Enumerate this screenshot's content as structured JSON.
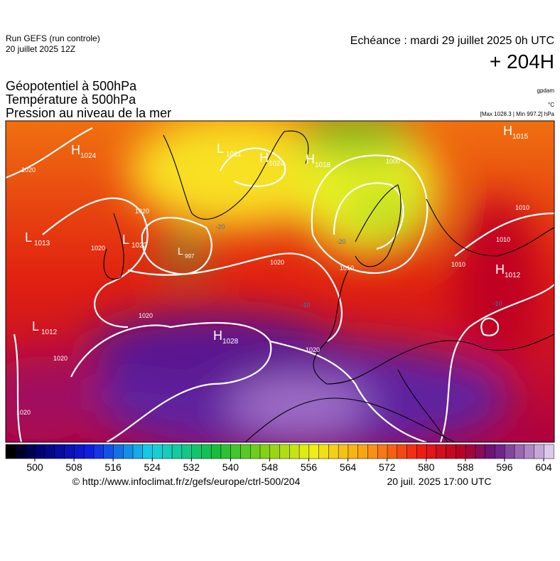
{
  "header": {
    "run": "Run GEFS (run controle)",
    "run_date": "20 juillet 2025 12Z",
    "valid": "Echéance : mardi 29 juillet 2025 0h UTC",
    "lead": "+ 204H",
    "field1": "Géopotentiel à 500hPa",
    "field2": "Température à 500hPa",
    "field3": "Pression au niveau de la mer",
    "unit1": "gpdam",
    "unit2": "°C",
    "unit3": "[Max 1028.3 | Min 997.2] hPa"
  },
  "pressure_centers": [
    {
      "letter": "H",
      "value": 1024
    },
    {
      "letter": "L",
      "value": 1011
    },
    {
      "letter": "H",
      "value": 1024
    },
    {
      "letter": "H",
      "value": 1018
    },
    {
      "letter": "H",
      "value": 1015
    },
    {
      "letter": "L",
      "value": 1013
    },
    {
      "letter": "L",
      "value": 1023
    },
    {
      "letter": "L",
      "value": 997
    },
    {
      "letter": "H",
      "value": 1012
    },
    {
      "letter": "L",
      "value": 1012
    },
    {
      "letter": "H",
      "value": 1028
    }
  ],
  "contour_labels": [
    1020,
    1020,
    1020,
    1020,
    1020,
    1020,
    1020,
    1020,
    1000,
    1010,
    1010,
    1010,
    1010,
    -10,
    -10,
    -20,
    -20
  ],
  "colorbar": {
    "ticks": [
      500,
      508,
      516,
      524,
      532,
      540,
      548,
      556,
      564,
      572,
      580,
      588,
      596,
      604
    ]
  },
  "footer": {
    "url": "© http://www.infoclimat.fr/z/gefs/europe/ctrl-500/204",
    "generated": "20 juil. 2025 17:00 UTC"
  }
}
